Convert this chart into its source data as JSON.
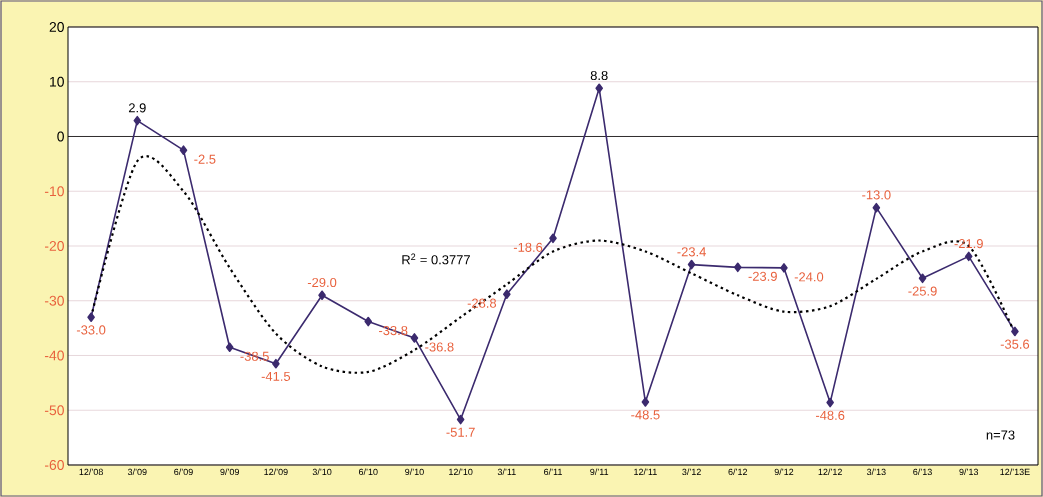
{
  "chart_data": {
    "type": "line",
    "categories": [
      "12/’08",
      "3/’09",
      "6/’09",
      "9/’09",
      "12/’09",
      "3/’10",
      "6/’10",
      "9/’10",
      "12/’10",
      "3/’11",
      "6/’11",
      "9/’11",
      "12/’11",
      "3/’12",
      "6/’12",
      "9/’12",
      "12/’12",
      "3/’13",
      "6/’13",
      "9/’13",
      "12/’13E"
    ],
    "series": [
      {
        "color": "#3b2a6e",
        "marker": "diamond",
        "line_style": "solid",
        "values": [
          -33.0,
          2.9,
          -2.5,
          -38.5,
          -41.5,
          -29.0,
          -33.8,
          -36.8,
          -51.7,
          -28.8,
          -18.6,
          8.8,
          -48.5,
          -23.4,
          -23.9,
          -24.0,
          -48.6,
          -13.0,
          -25.9,
          -21.9,
          -35.6
        ],
        "value_labels": [
          "-33.0",
          "2.9",
          "-2.5",
          "-38.5",
          "-41.5",
          "-29.0",
          "-33.8",
          "-36.8",
          "-51.7",
          "-28.8",
          "-18.6",
          "8.8",
          "-48.5",
          "-23.4",
          "-23.9",
          "-24.0",
          "-48.6",
          "-13.0",
          "-25.9",
          "-21.9",
          "-35.6"
        ]
      },
      {
        "type": "line",
        "color": "#000000",
        "marker": "none",
        "line_style": "dotted",
        "values": [
          -33,
          -4.5,
          -10,
          -24,
          -36,
          -42,
          -43,
          -39,
          -33,
          -27,
          -21,
          -19,
          -21,
          -25,
          -29,
          -32,
          -31,
          -26,
          -21,
          -20,
          -36
        ]
      }
    ],
    "ylim": [
      -60,
      20
    ],
    "yticks": [
      -60,
      -50,
      -40,
      -30,
      -20,
      -10,
      0,
      10,
      20
    ],
    "grid": "y",
    "annotations": [
      "R$^{2}$ = 0.3777",
      "n=73"
    ]
  }
}
